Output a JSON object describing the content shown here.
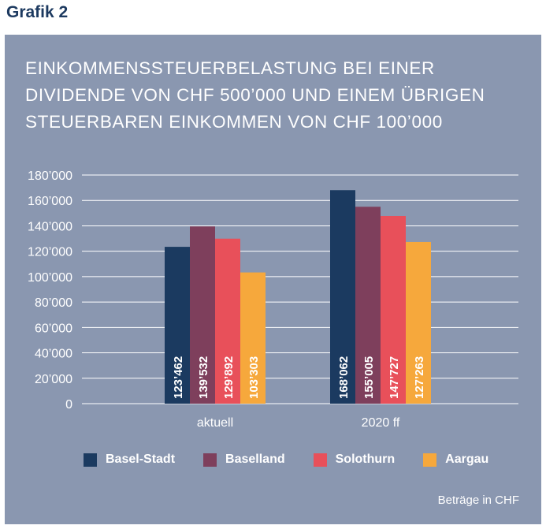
{
  "grafik_label": "Grafik 2",
  "title_lines": [
    "EINKOMMENSSTEUERBELASTUNG BEI EINER",
    "DIVIDENDE VON CHF 500’000 UND EINEM ÜBRIGEN",
    "STEUERBAREN EINKOMMEN VON CHF 100’000"
  ],
  "note": "Beträge in CHF",
  "chart_data": {
    "type": "bar",
    "title": "EINKOMMENSSTEUERBELASTUNG BEI EINER DIVIDENDE VON CHF 500’000 UND EINEM ÜBRIGEN STEUERBAREN EINKOMMEN VON CHF 100’000",
    "categories": [
      "aktuell",
      "2020 ff"
    ],
    "series": [
      {
        "name": "Basel-Stadt",
        "color": "#1b3a60",
        "values": [
          123462,
          168062
        ],
        "labels": [
          "123’462",
          "168’062"
        ]
      },
      {
        "name": "Baselland",
        "color": "#7e3f5c",
        "values": [
          139532,
          155005
        ],
        "labels": [
          "139’532",
          "155’005"
        ]
      },
      {
        "name": "Solothurn",
        "color": "#e8505a",
        "values": [
          129892,
          147727
        ],
        "labels": [
          "129’892",
          "147’727"
        ]
      },
      {
        "name": "Aargau",
        "color": "#f6a83c",
        "values": [
          103303,
          127263
        ],
        "labels": [
          "103’303",
          "127’263"
        ]
      }
    ],
    "ylim": [
      0,
      180000
    ],
    "yticks": [
      0,
      20000,
      40000,
      60000,
      80000,
      100000,
      120000,
      140000,
      160000,
      180000
    ],
    "ytick_labels": [
      "0",
      "20’000",
      "40’000",
      "60’000",
      "80’000",
      "100’000",
      "120’000",
      "140’000",
      "160’000",
      "180’000"
    ],
    "grid": true,
    "legend_position": "bottom"
  }
}
